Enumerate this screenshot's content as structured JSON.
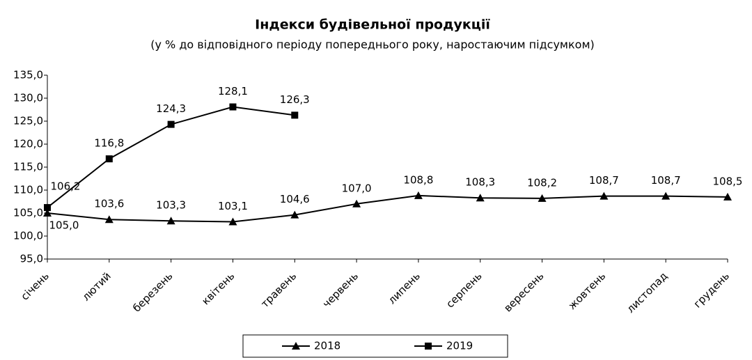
{
  "chart_data": {
    "type": "line",
    "title": "Індекси будівельної продукції",
    "subtitle": "(у % до відповідного періоду попереднього року, наростаючим підсумком)",
    "categories": [
      "січень",
      "лютий",
      "березень",
      "квітень",
      "травень",
      "червень",
      "липень",
      "серпень",
      "вересень",
      "жовтень",
      "листопад",
      "грудень"
    ],
    "series": [
      {
        "name": "2018",
        "color": "#000000",
        "marker": "triangle",
        "values": [
          105.0,
          103.6,
          103.3,
          103.1,
          104.6,
          107.0,
          108.8,
          108.3,
          108.2,
          108.7,
          108.7,
          108.5
        ],
        "value_labels": [
          "105,0",
          "103,6",
          "103,3",
          "103,1",
          "104,6",
          "107,0",
          "108,8",
          "108,3",
          "108,2",
          "108,7",
          "108,7",
          "108,5"
        ]
      },
      {
        "name": "2019",
        "color": "#000000",
        "marker": "square",
        "values": [
          106.2,
          116.8,
          124.3,
          128.1,
          126.3,
          null,
          null,
          null,
          null,
          null,
          null,
          null
        ],
        "value_labels": [
          "106,2",
          "116,8",
          "124,3",
          "128,1",
          "126,3",
          null,
          null,
          null,
          null,
          null,
          null,
          null
        ]
      }
    ],
    "ylim": [
      95,
      135
    ],
    "yticks": [
      {
        "value": 95,
        "label": "95,0"
      },
      {
        "value": 100,
        "label": "100,0"
      },
      {
        "value": 105,
        "label": "105,0"
      },
      {
        "value": 110,
        "label": "110,0"
      },
      {
        "value": 115,
        "label": "115,0"
      },
      {
        "value": 120,
        "label": "120,0"
      },
      {
        "value": 125,
        "label": "125,0"
      },
      {
        "value": 130,
        "label": "130,0"
      },
      {
        "value": 135,
        "label": "135,0"
      }
    ],
    "grid": false,
    "legend": "bottom"
  }
}
